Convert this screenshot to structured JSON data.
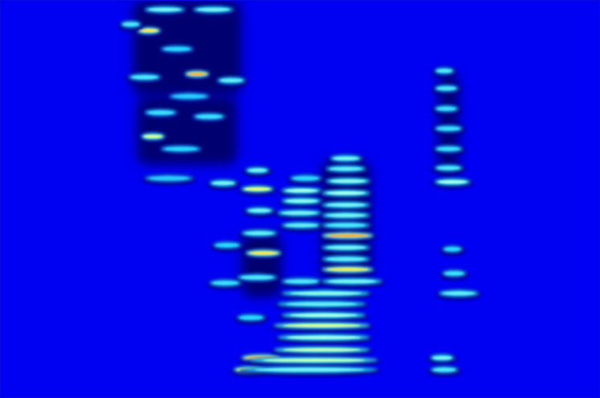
{
  "chart_data": {
    "type": "spectrogram",
    "xlim": [
      0,
      100
    ],
    "ylim": [
      0,
      100
    ],
    "tick_labels": false,
    "grid": false,
    "dark_regions": [
      [
        22.1,
        40.2,
        75.8,
        100
      ],
      [
        22.8,
        39.5,
        58.6,
        75.8
      ],
      [
        40.2,
        46.9,
        25.3,
        41.4
      ],
      [
        53.6,
        61.7,
        29.3,
        59.6
      ],
      [
        73.1,
        76.4,
        55.6,
        81.8
      ]
    ],
    "segments": [
      [
        22.8,
        26.8,
        92.3,
        0.9
      ],
      [
        30.8,
        34.9,
        81.4,
        0.95
      ],
      [
        23.5,
        27.5,
        65.7,
        0.8
      ],
      [
        20.1,
        23.5,
        93.9,
        0.5
      ],
      [
        24.1,
        30.8,
        97.6,
        0.6
      ],
      [
        32.2,
        38.9,
        97.6,
        0.6
      ],
      [
        21.4,
        26.8,
        80.6,
        0.5
      ],
      [
        36.2,
        40.9,
        79.8,
        0.55
      ],
      [
        26.8,
        32.2,
        87.7,
        0.4
      ],
      [
        24.1,
        29.5,
        71.7,
        0.45
      ],
      [
        32.2,
        37.5,
        70.7,
        0.45
      ],
      [
        26.8,
        33.5,
        62.6,
        0.4
      ],
      [
        24.1,
        32.2,
        55.2,
        0.35
      ],
      [
        34.9,
        39.5,
        54.0,
        0.6
      ],
      [
        28.2,
        34.9,
        75.8,
        0.35
      ],
      [
        40.9,
        44.9,
        57.2,
        0.6
      ],
      [
        40.2,
        45.6,
        52.5,
        0.85
      ],
      [
        40.9,
        45.6,
        47.1,
        0.6
      ],
      [
        40.2,
        46.2,
        41.4,
        0.55
      ],
      [
        40.9,
        46.9,
        36.4,
        0.9
      ],
      [
        39.5,
        46.2,
        30.3,
        0.5
      ],
      [
        34.9,
        40.2,
        28.9,
        0.45
      ],
      [
        35.5,
        40.2,
        38.4,
        0.4
      ],
      [
        39.5,
        44.2,
        20.2,
        0.4
      ],
      [
        40.2,
        46.9,
        10.1,
        0.95
      ],
      [
        38.9,
        44.2,
        7.1,
        0.85
      ],
      [
        46.9,
        53.6,
        52.1,
        0.7
      ],
      [
        46.9,
        53.6,
        49.5,
        0.65
      ],
      [
        46.2,
        53.6,
        46.5,
        0.6
      ],
      [
        46.9,
        53.6,
        43.4,
        0.55
      ],
      [
        48.3,
        53.6,
        55.2,
        0.4
      ],
      [
        46.9,
        61.7,
        26.3,
        0.65
      ],
      [
        46.2,
        61.0,
        23.6,
        0.55
      ],
      [
        46.9,
        61.0,
        20.8,
        0.7
      ],
      [
        45.6,
        61.7,
        18.2,
        0.8
      ],
      [
        46.2,
        61.7,
        15.2,
        0.7
      ],
      [
        45.6,
        61.7,
        12.1,
        0.75
      ],
      [
        41.6,
        63.0,
        9.5,
        0.75
      ],
      [
        40.2,
        63.0,
        7.1,
        0.6
      ],
      [
        46.9,
        53.6,
        29.3,
        0.5
      ],
      [
        55.0,
        60.3,
        60.2,
        0.6
      ],
      [
        54.3,
        61.0,
        57.6,
        0.55
      ],
      [
        54.3,
        61.7,
        54.5,
        0.65
      ],
      [
        53.6,
        61.7,
        51.5,
        0.7
      ],
      [
        53.6,
        61.7,
        48.5,
        0.6
      ],
      [
        53.6,
        61.7,
        45.9,
        0.6
      ],
      [
        53.6,
        61.7,
        43.4,
        0.5
      ],
      [
        53.6,
        62.3,
        40.8,
        0.95
      ],
      [
        53.6,
        61.7,
        37.8,
        0.6
      ],
      [
        53.6,
        61.7,
        34.9,
        0.55
      ],
      [
        53.6,
        62.3,
        32.3,
        0.9
      ],
      [
        53.6,
        63.7,
        29.3,
        0.6
      ],
      [
        72.4,
        75.7,
        82.2,
        0.5
      ],
      [
        72.4,
        76.4,
        77.8,
        0.5
      ],
      [
        72.4,
        76.4,
        72.7,
        0.45
      ],
      [
        72.4,
        77.1,
        67.7,
        0.45
      ],
      [
        72.4,
        77.1,
        62.6,
        0.45
      ],
      [
        72.4,
        77.1,
        57.8,
        0.5
      ],
      [
        72.4,
        78.4,
        54.3,
        0.7
      ],
      [
        73.7,
        77.1,
        37.4,
        0.4
      ],
      [
        73.7,
        77.7,
        31.3,
        0.45
      ],
      [
        73.1,
        79.8,
        26.3,
        0.55
      ],
      [
        71.7,
        75.7,
        10.1,
        0.6
      ],
      [
        71.7,
        76.4,
        7.1,
        0.5
      ]
    ]
  }
}
